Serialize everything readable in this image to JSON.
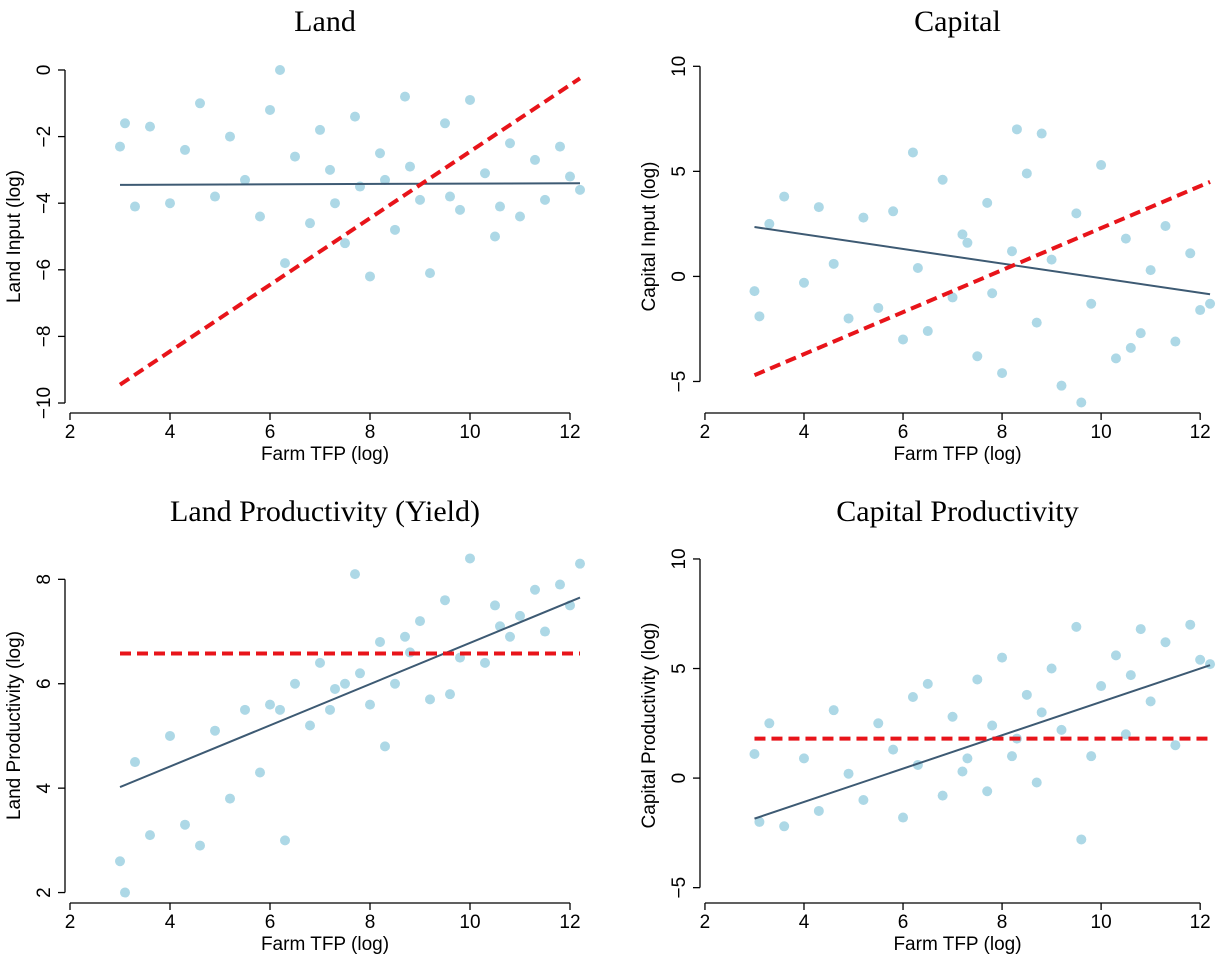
{
  "chart_data": [
    {
      "type": "scatter",
      "title": "Land",
      "x_label": "Farm TFP (log)",
      "y_label": "Land Input (log)",
      "xlim": [
        1.9,
        12.3
      ],
      "ylim": [
        -10.3,
        0.3
      ],
      "xticks": [
        2,
        4,
        6,
        8,
        10,
        12
      ],
      "yticks": [
        {
          "value": -10,
          "label": "−10"
        },
        {
          "value": -8,
          "label": "−8"
        },
        {
          "value": -6,
          "label": "−6"
        },
        {
          "value": -4,
          "label": "−4"
        },
        {
          "value": -2,
          "label": "−2"
        },
        0
      ],
      "points": {
        "color": "#add8e6",
        "x": [
          3.0,
          3.1,
          3.3,
          3.6,
          4.0,
          4.3,
          4.6,
          4.9,
          5.2,
          5.5,
          5.8,
          6.0,
          6.2,
          6.3,
          6.5,
          6.8,
          7.0,
          7.2,
          7.5,
          7.7,
          8.0,
          8.2,
          8.5,
          8.7,
          9.0,
          9.2,
          9.5,
          9.8,
          10.0,
          10.3,
          10.5,
          10.8,
          11.0,
          11.3,
          11.5,
          11.8,
          12.0,
          12.2,
          7.8,
          8.8,
          9.6,
          10.6,
          7.3,
          8.3
        ],
        "y": [
          -2.3,
          -1.6,
          -4.1,
          -1.7,
          -4.0,
          -2.4,
          -1.0,
          -3.8,
          -2.0,
          -3.3,
          -4.4,
          -1.2,
          0.0,
          -5.8,
          -2.6,
          -4.6,
          -1.8,
          -3.0,
          -5.2,
          -1.4,
          -6.2,
          -2.5,
          -4.8,
          -0.8,
          -3.9,
          -6.1,
          -1.6,
          -4.2,
          -0.9,
          -3.1,
          -5.0,
          -2.2,
          -4.4,
          -2.7,
          -3.9,
          -2.3,
          -3.2,
          -3.6,
          -3.5,
          -2.9,
          -3.8,
          -4.1,
          -4.0,
          -3.3
        ]
      },
      "fit_line": {
        "color": "#3d5a73",
        "x": [
          3,
          12.2
        ],
        "y": [
          -3.45,
          -3.4
        ]
      },
      "reference_line": {
        "color": "#e8141a",
        "dashed": true,
        "x": [
          3,
          12.2
        ],
        "y": [
          -9.45,
          -0.25
        ]
      }
    },
    {
      "type": "scatter",
      "title": "Capital",
      "x_label": "Farm TFP (log)",
      "y_label": "Capital Input (log)",
      "xlim": [
        1.9,
        12.3
      ],
      "ylim": [
        -6.5,
        10.3
      ],
      "xticks": [
        2,
        4,
        6,
        8,
        10,
        12
      ],
      "yticks": [
        {
          "value": -5,
          "label": "−5"
        },
        0,
        5,
        10
      ],
      "points": {
        "color": "#add8e6",
        "x": [
          3.0,
          3.1,
          3.3,
          3.6,
          4.0,
          4.3,
          4.6,
          4.9,
          5.2,
          5.5,
          5.8,
          6.0,
          6.2,
          6.3,
          6.5,
          6.8,
          7.0,
          7.2,
          7.5,
          7.7,
          8.0,
          8.2,
          8.5,
          8.7,
          9.0,
          9.2,
          9.5,
          9.8,
          10.0,
          10.3,
          10.5,
          10.8,
          11.0,
          11.3,
          11.5,
          11.8,
          12.0,
          12.2,
          7.8,
          8.8,
          9.6,
          10.6,
          7.3,
          8.3
        ],
        "y": [
          -0.7,
          -1.9,
          2.5,
          3.8,
          -0.3,
          3.3,
          0.6,
          -2.0,
          2.8,
          -1.5,
          3.1,
          -3.0,
          5.9,
          0.4,
          -2.6,
          4.6,
          -1.0,
          2.0,
          -3.8,
          3.5,
          -4.6,
          1.2,
          4.9,
          -2.2,
          0.8,
          -5.2,
          3.0,
          -1.3,
          5.3,
          -3.9,
          1.8,
          -2.7,
          0.3,
          2.4,
          -3.1,
          1.1,
          -1.6,
          -1.3,
          -0.8,
          6.8,
          -6.0,
          -3.4,
          1.6,
          7.0
        ]
      },
      "fit_line": {
        "color": "#3d5a73",
        "x": [
          3,
          12.2
        ],
        "y": [
          2.35,
          -0.85
        ]
      },
      "reference_line": {
        "color": "#e8141a",
        "dashed": true,
        "x": [
          3,
          12.2
        ],
        "y": [
          -4.7,
          4.5
        ]
      }
    },
    {
      "type": "scatter",
      "title": "Land Productivity (Yield)",
      "x_label": "Farm TFP (log)",
      "y_label": "Land Productivity (log)",
      "xlim": [
        1.9,
        12.3
      ],
      "ylim": [
        1.8,
        8.6
      ],
      "xticks": [
        2,
        4,
        6,
        8,
        10,
        12
      ],
      "yticks": [
        2,
        4,
        6,
        8
      ],
      "points": {
        "color": "#add8e6",
        "x": [
          3.0,
          3.1,
          3.3,
          3.6,
          4.0,
          4.3,
          4.6,
          4.9,
          5.2,
          5.5,
          5.8,
          6.0,
          6.2,
          6.3,
          6.5,
          6.8,
          7.0,
          7.2,
          7.5,
          7.7,
          8.0,
          8.2,
          8.5,
          8.7,
          9.0,
          9.2,
          9.5,
          9.8,
          10.0,
          10.3,
          10.5,
          10.8,
          11.0,
          11.3,
          11.5,
          11.8,
          12.0,
          12.2,
          7.8,
          8.8,
          9.6,
          10.6,
          7.3,
          8.3
        ],
        "y": [
          2.6,
          2.0,
          4.5,
          3.1,
          5.0,
          3.3,
          2.9,
          5.1,
          3.8,
          5.5,
          4.3,
          5.6,
          5.5,
          3.0,
          6.0,
          5.2,
          6.4,
          5.5,
          6.0,
          8.1,
          5.6,
          6.8,
          6.0,
          6.9,
          7.2,
          5.7,
          7.6,
          6.5,
          8.4,
          6.4,
          7.5,
          6.9,
          7.3,
          7.8,
          7.0,
          7.9,
          7.5,
          8.3,
          6.2,
          6.6,
          5.8,
          7.1,
          5.9,
          4.8
        ]
      },
      "fit_line": {
        "color": "#3d5a73",
        "x": [
          3,
          12.2
        ],
        "y": [
          4.02,
          7.65
        ]
      },
      "reference_line": {
        "color": "#e8141a",
        "dashed": true,
        "x": [
          3,
          12.2
        ],
        "y": [
          6.58,
          6.58
        ]
      }
    },
    {
      "type": "scatter",
      "title": "Capital Productivity",
      "x_label": "Farm TFP (log)",
      "y_label": "Capital Productivity (log)",
      "xlim": [
        1.9,
        12.3
      ],
      "ylim": [
        -5.7,
        10.5
      ],
      "xticks": [
        2,
        4,
        6,
        8,
        10,
        12
      ],
      "yticks": [
        {
          "value": -5,
          "label": "−5"
        },
        0,
        5,
        10
      ],
      "points": {
        "color": "#add8e6",
        "x": [
          3.0,
          3.1,
          3.3,
          3.6,
          4.0,
          4.3,
          4.6,
          4.9,
          5.2,
          5.5,
          5.8,
          6.0,
          6.2,
          6.3,
          6.5,
          6.8,
          7.0,
          7.2,
          7.5,
          7.7,
          8.0,
          8.2,
          8.5,
          8.7,
          9.0,
          9.2,
          9.5,
          9.8,
          10.0,
          10.3,
          10.5,
          10.8,
          11.0,
          11.3,
          11.5,
          11.8,
          12.0,
          12.2,
          7.8,
          8.8,
          9.6,
          10.6,
          7.3,
          8.3
        ],
        "y": [
          1.1,
          -2.0,
          2.5,
          -2.2,
          0.9,
          -1.5,
          3.1,
          0.2,
          -1.0,
          2.5,
          1.3,
          -1.8,
          3.7,
          0.6,
          4.3,
          -0.8,
          2.8,
          0.3,
          4.5,
          -0.6,
          5.5,
          1.0,
          3.8,
          -0.2,
          5.0,
          2.2,
          6.9,
          1.0,
          4.2,
          5.6,
          2.0,
          6.8,
          3.5,
          6.2,
          1.5,
          7.0,
          5.4,
          5.2,
          2.4,
          3.0,
          -2.8,
          4.7,
          0.9,
          1.8
        ]
      },
      "fit_line": {
        "color": "#3d5a73",
        "x": [
          3,
          12.2
        ],
        "y": [
          -1.85,
          5.15
        ]
      },
      "reference_line": {
        "color": "#e8141a",
        "dashed": true,
        "x": [
          3,
          12.2
        ],
        "y": [
          1.8,
          1.8
        ]
      }
    }
  ]
}
